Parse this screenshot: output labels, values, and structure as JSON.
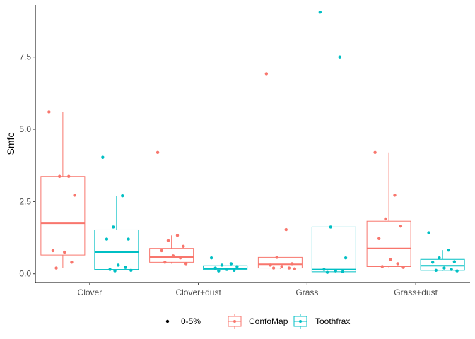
{
  "chart_data": {
    "type": "box",
    "title": "",
    "xlabel": "",
    "ylabel": "Smfc",
    "ylim": [
      -0.3,
      9.3
    ],
    "yticks": [
      0.0,
      2.5,
      5.0,
      7.5
    ],
    "ytick_labels": [
      "0.0",
      "2.5",
      "5.0",
      "7.5"
    ],
    "categories": [
      "Clover",
      "Clover+dust",
      "Grass",
      "Grass+dust"
    ],
    "grid": false,
    "legend_position": "bottom",
    "legend": {
      "size_entry": "0-5%",
      "color_entries": [
        "ConfoMap",
        "Toothfrax"
      ]
    },
    "series": [
      {
        "name": "ConfoMap",
        "color": "#F8766D",
        "boxes": [
          {
            "category": "Clover",
            "min": 0.2,
            "q1": 0.65,
            "median": 1.75,
            "q3": 3.37,
            "max": 5.6
          },
          {
            "category": "Clover+dust",
            "min": 0.35,
            "q1": 0.4,
            "median": 0.58,
            "q3": 0.88,
            "max": 1.33
          },
          {
            "category": "Grass",
            "min": 0.17,
            "q1": 0.2,
            "median": 0.33,
            "q3": 0.57,
            "max": 0.57
          },
          {
            "category": "Grass+dust",
            "min": 0.22,
            "q1": 0.25,
            "median": 0.88,
            "q3": 1.82,
            "max": 4.2
          }
        ],
        "points": [
          {
            "category": "Clover",
            "values": [
              5.6,
              3.37,
              3.37,
              2.72,
              0.8,
              0.75,
              0.4,
              0.2
            ]
          },
          {
            "category": "Clover+dust",
            "values": [
              4.2,
              1.33,
              1.15,
              0.95,
              0.8,
              0.62,
              0.55,
              0.4,
              0.35
            ]
          },
          {
            "category": "Grass",
            "values": [
              6.92,
              1.53,
              0.57,
              0.35,
              0.3,
              0.25,
              0.2,
              0.2,
              0.17
            ]
          },
          {
            "category": "Grass+dust",
            "values": [
              4.2,
              2.72,
              1.9,
              1.65,
              1.22,
              0.5,
              0.35,
              0.25,
              0.22
            ]
          }
        ]
      },
      {
        "name": "Toothfrax",
        "color": "#00BFC4",
        "boxes": [
          {
            "category": "Clover",
            "min": 0.12,
            "q1": 0.15,
            "median": 0.75,
            "q3": 1.52,
            "max": 2.7
          },
          {
            "category": "Clover+dust",
            "min": 0.1,
            "q1": 0.14,
            "median": 0.18,
            "q3": 0.28,
            "max": 0.3
          },
          {
            "category": "Grass",
            "min": 0.05,
            "q1": 0.07,
            "median": 0.15,
            "q3": 1.62,
            "max": 1.62
          },
          {
            "category": "Grass+dust",
            "min": 0.1,
            "q1": 0.12,
            "median": 0.28,
            "q3": 0.5,
            "max": 0.82
          }
        ],
        "points": [
          {
            "category": "Clover",
            "values": [
              4.03,
              2.7,
              1.62,
              1.2,
              1.2,
              0.3,
              0.22,
              0.15,
              0.12,
              0.1
            ]
          },
          {
            "category": "Clover+dust",
            "values": [
              0.55,
              0.35,
              0.3,
              0.25,
              0.2,
              0.15,
              0.12,
              0.1
            ]
          },
          {
            "category": "Grass",
            "values": [
              9.05,
              7.5,
              1.62,
              0.55,
              0.15,
              0.1,
              0.07,
              0.05
            ]
          },
          {
            "category": "Grass+dust",
            "values": [
              1.42,
              0.82,
              0.55,
              0.42,
              0.4,
              0.2,
              0.15,
              0.12,
              0.1
            ]
          }
        ]
      }
    ]
  }
}
